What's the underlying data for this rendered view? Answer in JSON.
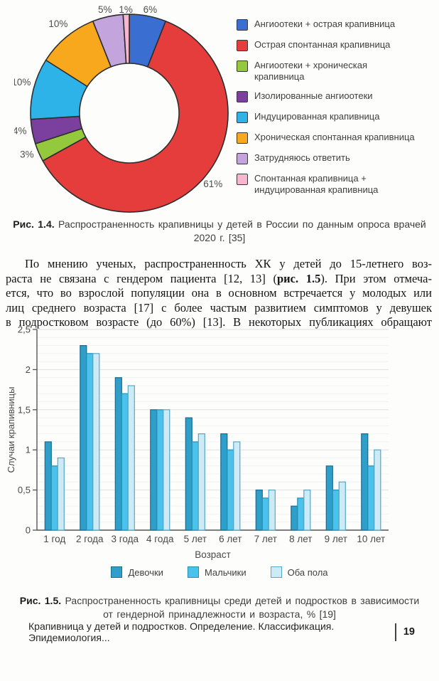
{
  "figure_1_4": {
    "caption": {
      "prefix": "Рис. 1.4.",
      "lines": [
        "Распространенность крапивницы у детей в России по данным опроса врачей",
        "2020 г. [35]"
      ]
    }
  },
  "body_paragraph": {
    "lines": [
      [
        {
          "t": "По мнению ученых, распространенность ХК у детей до 15-летнего воз-"
        }
      ],
      [
        {
          "t": "раста не связана с гендером пациента [12, 13] ("
        },
        {
          "t": "рис. 1.5",
          "b": true
        },
        {
          "t": "). При этом отмеча-"
        }
      ],
      [
        {
          "t": "ется, что во взрослой популяции она в основном встречается у молодых или"
        }
      ],
      [
        {
          "t": "лиц среднего возраста [17] с более частым развитием симптомов у девушек"
        }
      ],
      [
        {
          "t": "в подростковом возрасте (до 60%) [13]. В некоторых публикациях обращают"
        }
      ]
    ]
  },
  "figure_1_5": {
    "caption": {
      "prefix": "Рис. 1.5.",
      "lines": [
        "Распространенность крапивницы среди детей и подростков в зависимости",
        "от гендерной принадлежности и возраста, % [19]"
      ]
    }
  },
  "footer": {
    "running_title": "Крапивница у детей и подростков. Определение. Классификация. Эпидемиология...",
    "page_number": "19"
  },
  "chart_data": [
    {
      "type": "pie",
      "subtype": "donut",
      "units": "%",
      "start_angle_deg": 0,
      "direction": "clockwise",
      "legend_position": "right",
      "outline_color": "#2d2d2d",
      "label_color": "#4f4f4f",
      "slices": [
        {
          "label": "Ангиоотеки + острая крапивница",
          "value": 6,
          "color": "#3a6fd1"
        },
        {
          "label": "Острая спонтанная крапивница",
          "value": 61,
          "color": "#e43d3b"
        },
        {
          "label": "Ангиоотеки + хроническая крапивница",
          "value": 3,
          "color": "#94c83d"
        },
        {
          "label": "Изолированные ангиоотеки",
          "value": 4,
          "color": "#7b3f9e"
        },
        {
          "label": "Индуцированная крапивница",
          "value": 10,
          "color": "#2eb3e8"
        },
        {
          "label": "Хроническая спонтанная крапивница",
          "value": 10,
          "color": "#f7a81c"
        },
        {
          "label": "Затрудняюсь ответить",
          "value": 5,
          "color": "#c4a4dc"
        },
        {
          "label": "Спонтанная крапивница + индуцированная крапивница",
          "value": 1,
          "color": "#f6b6d0"
        }
      ]
    },
    {
      "type": "bar",
      "categories": [
        "1 год",
        "2 года",
        "3 года",
        "4 года",
        "5 лет",
        "6 лет",
        "7 лет",
        "8 лет",
        "9 лет",
        "10 лет"
      ],
      "series": [
        {
          "name": "Девочки",
          "color": "#2f9fc9",
          "border": "#1c6c8f",
          "values": [
            1.1,
            2.3,
            1.9,
            1.5,
            1.4,
            1.2,
            0.5,
            0.3,
            0.8,
            1.2
          ]
        },
        {
          "name": "Мальчики",
          "color": "#4ac2ec",
          "border": "#2590b4",
          "values": [
            0.8,
            2.2,
            1.7,
            1.5,
            1.1,
            1.0,
            0.4,
            0.4,
            0.5,
            0.8
          ]
        },
        {
          "name": "Оба пола",
          "color": "#cdeaf7",
          "border": "#58a7c4",
          "values": [
            0.9,
            2.2,
            1.8,
            1.5,
            1.2,
            1.1,
            0.5,
            0.5,
            0.6,
            1.0
          ]
        }
      ],
      "xlabel": "Возраст",
      "ylabel": "Случаи крапивницы",
      "ylim": [
        0,
        2.5
      ],
      "ytick_labels": [
        "0",
        "0,5",
        "1",
        "1,5",
        "2",
        "2,5"
      ],
      "grid": true,
      "legend_position": "bottom",
      "axis_color": "#555555"
    }
  ]
}
